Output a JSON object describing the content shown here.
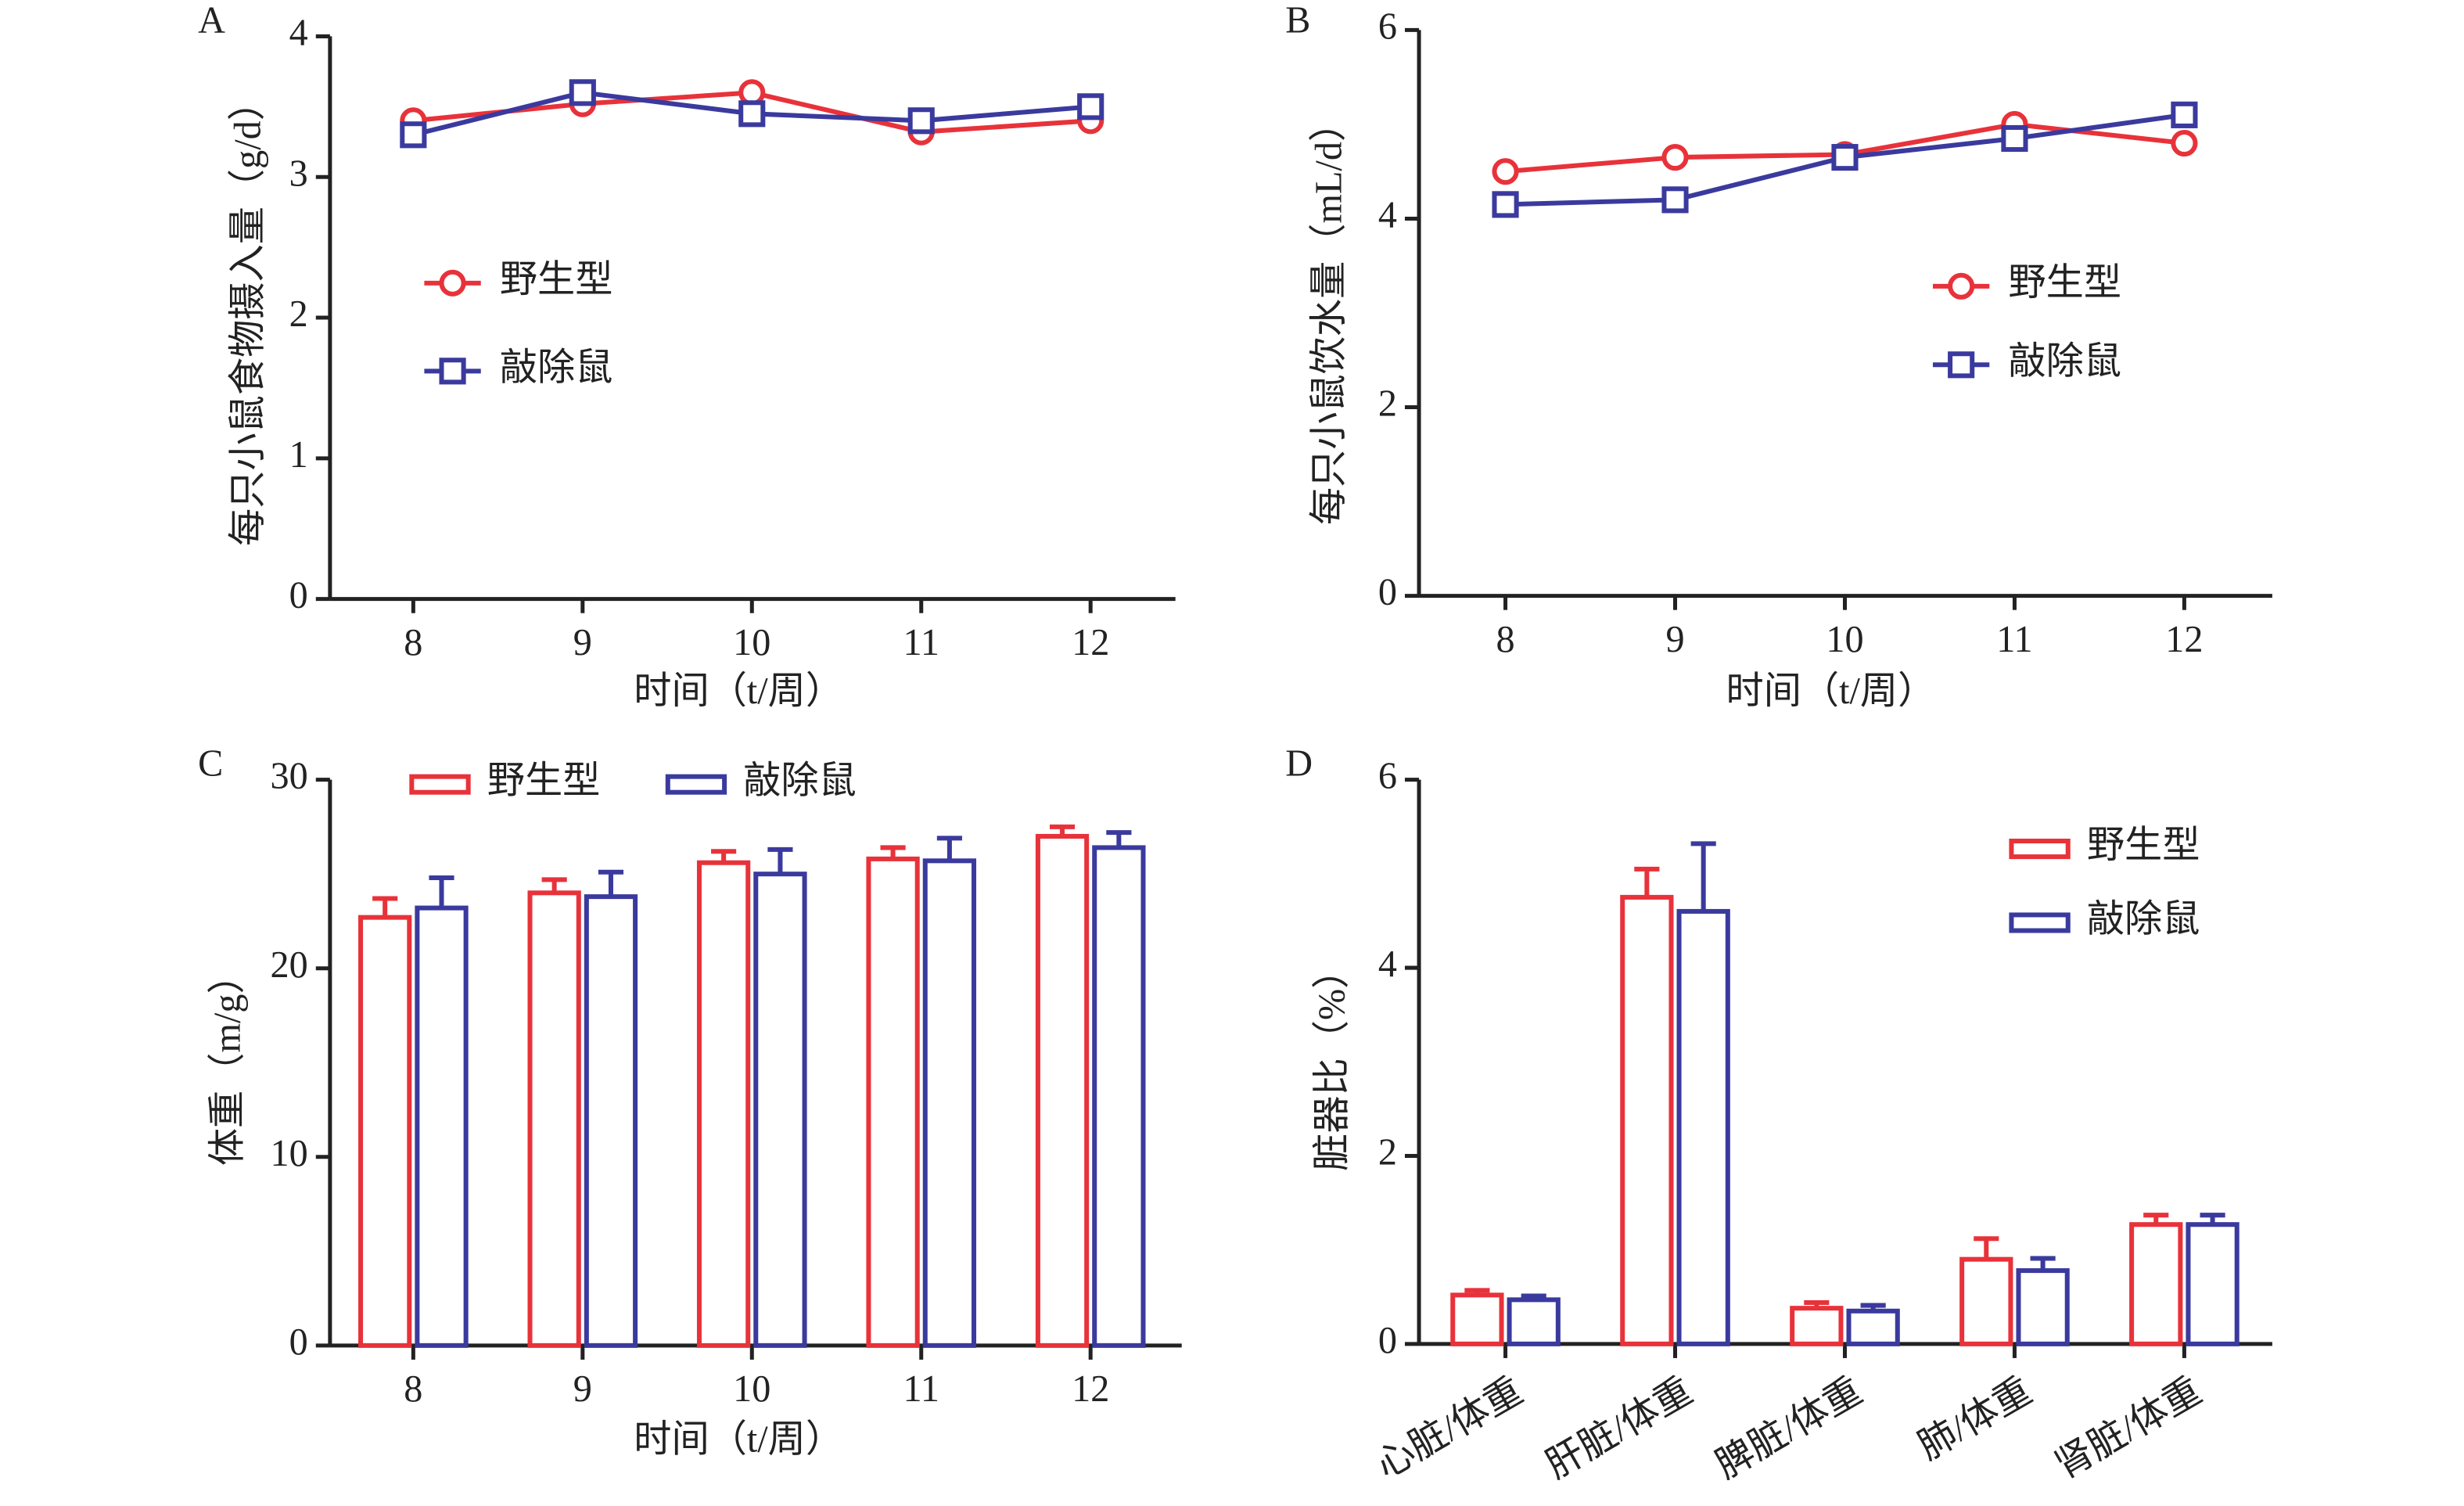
{
  "chart_data": [
    {
      "type": "line",
      "panel_label": "A",
      "y_label": "每只小鼠食物摄入量（g/d）",
      "x_label": "时间（t/周）",
      "categories": [
        "8",
        "9",
        "10",
        "11",
        "12"
      ],
      "ylim": [
        0,
        4
      ],
      "yticks": [
        0,
        1,
        2,
        3,
        4
      ],
      "series": [
        {
          "name": "野生型",
          "color": "#e8323a",
          "values": [
            3.4,
            3.52,
            3.6,
            3.32,
            3.4
          ]
        },
        {
          "name": "敲除鼠",
          "color": "#3a3a9e",
          "values": [
            3.3,
            3.6,
            3.45,
            3.4,
            3.5
          ]
        }
      ]
    },
    {
      "type": "line",
      "panel_label": "B",
      "y_label": "每只小鼠饮水量（mL/d）",
      "x_label": "时间（t/周）",
      "categories": [
        "8",
        "9",
        "10",
        "11",
        "12"
      ],
      "ylim": [
        0,
        6
      ],
      "yticks": [
        0,
        2,
        4,
        6
      ],
      "series": [
        {
          "name": "野生型",
          "color": "#e8323a",
          "values": [
            4.5,
            4.65,
            4.68,
            5.0,
            4.8
          ]
        },
        {
          "name": "敲除鼠",
          "color": "#3a3a9e",
          "values": [
            4.15,
            4.2,
            4.65,
            4.85,
            5.1
          ]
        }
      ]
    },
    {
      "type": "bar",
      "panel_label": "C",
      "y_label": "体重（m/g）",
      "x_label": "时间（t/周）",
      "categories": [
        "8",
        "9",
        "10",
        "11",
        "12"
      ],
      "ylim": [
        0,
        30
      ],
      "yticks": [
        0,
        10,
        20,
        30
      ],
      "series": [
        {
          "name": "野生型",
          "color": "#e8323a",
          "values": [
            22.7,
            24.0,
            25.6,
            25.8,
            27.0
          ],
          "errors": [
            1.0,
            0.7,
            0.6,
            0.6,
            0.5
          ]
        },
        {
          "name": "敲除鼠",
          "color": "#3a3a9e",
          "values": [
            23.2,
            23.8,
            25.0,
            25.7,
            26.4
          ],
          "errors": [
            1.6,
            1.3,
            1.3,
            1.2,
            0.8
          ]
        }
      ]
    },
    {
      "type": "bar",
      "panel_label": "D",
      "y_label": "脏器比（%）",
      "categories": [
        "心脏/体重",
        "肝脏/体重",
        "脾脏/体重",
        "肺/体重",
        "肾脏/体重"
      ],
      "ylim": [
        0,
        6
      ],
      "yticks": [
        0,
        2,
        4,
        6
      ],
      "series": [
        {
          "name": "野生型",
          "color": "#e8323a",
          "values": [
            0.52,
            4.75,
            0.38,
            0.9,
            1.27
          ],
          "errors": [
            0.05,
            0.3,
            0.06,
            0.22,
            0.1
          ]
        },
        {
          "name": "敲除鼠",
          "color": "#3a3a9e",
          "values": [
            0.47,
            4.6,
            0.35,
            0.78,
            1.27
          ],
          "errors": [
            0.04,
            0.72,
            0.06,
            0.13,
            0.1
          ]
        }
      ]
    }
  ]
}
